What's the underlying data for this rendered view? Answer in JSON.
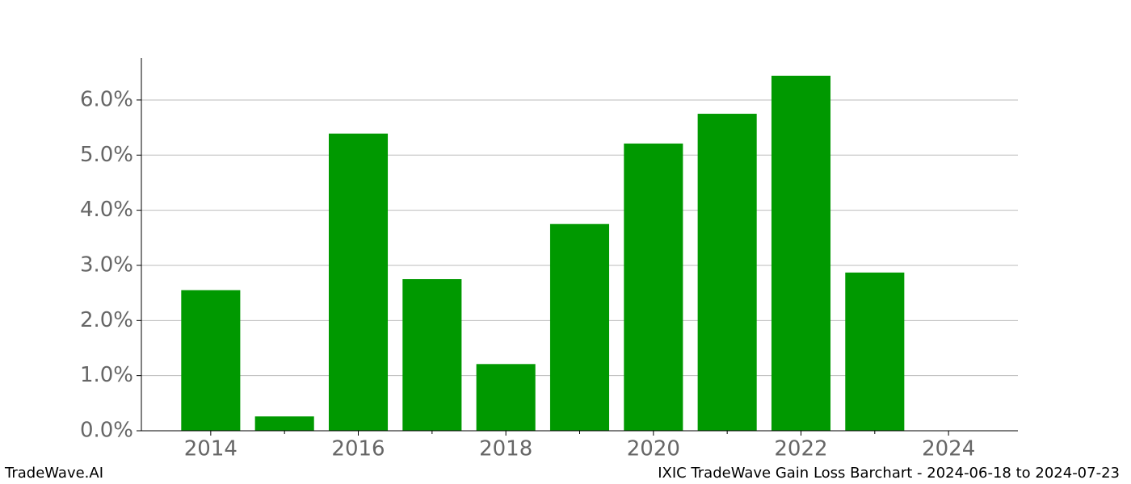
{
  "chart_data": {
    "type": "bar",
    "x": [
      2014,
      2015,
      2016,
      2017,
      2018,
      2019,
      2020,
      2021,
      2022,
      2023,
      2024
    ],
    "values": [
      2.55,
      0.26,
      5.39,
      2.75,
      1.21,
      3.75,
      5.21,
      5.75,
      6.44,
      2.87,
      0
    ],
    "color": "#009900",
    "xlim": [
      2013.06,
      2024.94
    ],
    "xticks": [
      2014,
      2016,
      2018,
      2020,
      2022,
      2024
    ],
    "xminor_ticks": [
      2015,
      2017,
      2019,
      2021,
      2023
    ],
    "ylim": [
      0,
      6.76
    ],
    "yticks": [
      {
        "value": 0,
        "label": "0.0%"
      },
      {
        "value": 1,
        "label": "1.0%"
      },
      {
        "value": 2,
        "label": "2.0%"
      },
      {
        "value": 3,
        "label": "3.0%"
      },
      {
        "value": 4,
        "label": "4.0%"
      },
      {
        "value": 5,
        "label": "5.0%"
      },
      {
        "value": 6,
        "label": "6.0%"
      }
    ],
    "grid": true,
    "footer_left": "TradeWave.AI",
    "footer_right": "IXIC TradeWave Gain Loss Barchart - 2024-06-18 to 2024-07-23"
  }
}
